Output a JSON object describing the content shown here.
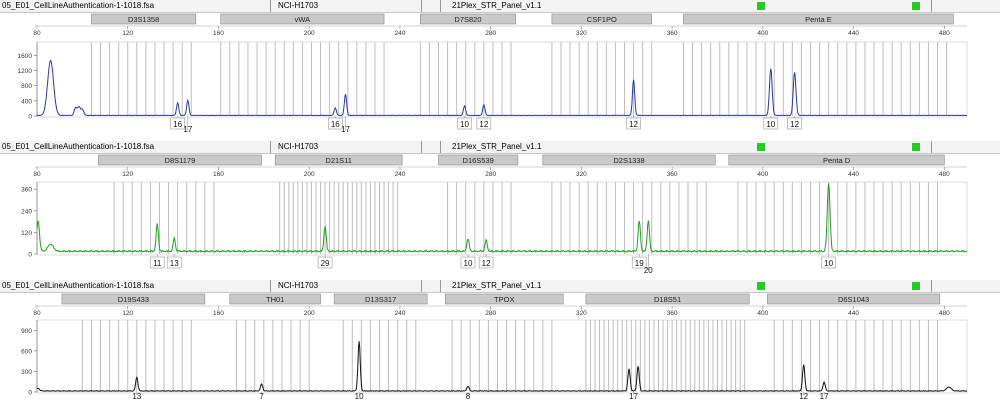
{
  "panels": [
    {
      "header": {
        "file": "05_E01_CellLineAuthentication-1-1018.fsa",
        "sample": "NCI-H1703",
        "panel": "21Plex_STR_Panel_v1.1"
      },
      "color": "#2b35b8",
      "chart_data": {
        "type": "line",
        "x_ticks": [
          80,
          120,
          160,
          200,
          240,
          280,
          320,
          360,
          400,
          440,
          480
        ],
        "y_ticks": [
          0,
          400,
          800,
          1200,
          1600
        ],
        "ylim": [
          0,
          1950
        ],
        "loci": [
          {
            "name": "D3S1358",
            "start": 104,
            "end": 150
          },
          {
            "name": "vWA",
            "start": 161,
            "end": 233
          },
          {
            "name": "D7S820",
            "start": 249,
            "end": 291
          },
          {
            "name": "CSF1PO",
            "start": 307,
            "end": 351
          },
          {
            "name": "Penta E",
            "start": 365,
            "end": 484
          }
        ],
        "peaks": [
          {
            "x": 86,
            "height": 1450,
            "width": 1.3
          },
          {
            "x": 97,
            "height": 200,
            "width": 0.6
          },
          {
            "x": 98.5,
            "height": 220,
            "width": 0.6
          },
          {
            "x": 100,
            "height": 160,
            "width": 0.6
          },
          {
            "x": 142,
            "height": 330,
            "width": 0.5
          },
          {
            "x": 146.5,
            "height": 400,
            "width": 0.5
          },
          {
            "x": 211.5,
            "height": 200,
            "width": 0.5
          },
          {
            "x": 216,
            "height": 560,
            "width": 0.5
          },
          {
            "x": 268.5,
            "height": 250,
            "width": 0.5
          },
          {
            "x": 277,
            "height": 280,
            "width": 0.5
          },
          {
            "x": 343,
            "height": 940,
            "width": 0.5
          },
          {
            "x": 403.5,
            "height": 1230,
            "width": 0.6
          },
          {
            "x": 414,
            "height": 1130,
            "width": 0.6
          }
        ],
        "alleles": [
          {
            "x": 142,
            "label": "16",
            "row": 0
          },
          {
            "x": 146.5,
            "label": "17",
            "row": 1
          },
          {
            "x": 211.5,
            "label": "16",
            "row": 0
          },
          {
            "x": 216,
            "label": "17",
            "row": 1
          },
          {
            "x": 268.5,
            "label": "10",
            "row": 0
          },
          {
            "x": 277,
            "label": "12",
            "row": 0
          },
          {
            "x": 343,
            "label": "12",
            "row": 0
          },
          {
            "x": 403.5,
            "label": "10",
            "row": 0
          },
          {
            "x": 414,
            "label": "12",
            "row": 0
          }
        ],
        "bins": [
          104,
          108,
          112,
          116,
          120,
          124,
          128,
          132,
          136,
          140,
          144,
          148,
          161,
          165,
          169,
          173,
          177,
          181,
          185,
          189,
          193,
          197,
          201,
          205,
          209,
          213,
          217,
          221,
          225,
          229,
          233,
          249,
          253,
          257,
          261,
          265,
          269,
          273,
          277,
          281,
          285,
          289,
          307,
          311,
          315,
          319,
          323,
          327,
          331,
          335,
          339,
          343,
          347,
          351,
          365,
          369,
          373,
          377,
          381,
          385,
          389,
          393,
          397,
          401,
          405,
          409,
          413,
          417,
          421,
          425,
          429,
          433,
          437,
          441,
          445,
          449,
          453,
          457,
          461,
          465,
          469,
          473,
          477,
          481
        ]
      }
    },
    {
      "header": {
        "file": "05_E01_CellLineAuthentication-1-1018.fsa",
        "sample": "NCI-H1703",
        "panel": "21Plex_STR_Panel_v1.1"
      },
      "color": "#1fa01f",
      "chart_data": {
        "type": "line",
        "x_ticks": [
          80,
          120,
          160,
          200,
          240,
          280,
          320,
          360,
          400,
          440,
          480
        ],
        "y_ticks": [
          0,
          120,
          240,
          360
        ],
        "ylim": [
          0,
          400
        ],
        "loci": [
          {
            "name": "D8S1179",
            "start": 107,
            "end": 179
          },
          {
            "name": "D21S11",
            "start": 185,
            "end": 241
          },
          {
            "name": "D16S539",
            "start": 257,
            "end": 292
          },
          {
            "name": "D2S1338",
            "start": 303,
            "end": 379
          },
          {
            "name": "Penta D",
            "start": 385,
            "end": 480
          }
        ],
        "peaks": [
          {
            "x": 80.5,
            "height": 170,
            "width": 0.6
          },
          {
            "x": 86,
            "height": 40,
            "width": 1.2
          },
          {
            "x": 133,
            "height": 150,
            "width": 0.5
          },
          {
            "x": 140.5,
            "height": 70,
            "width": 0.5
          },
          {
            "x": 207,
            "height": 140,
            "width": 0.5
          },
          {
            "x": 270,
            "height": 70,
            "width": 0.5
          },
          {
            "x": 278,
            "height": 60,
            "width": 0.5
          },
          {
            "x": 345.5,
            "height": 170,
            "width": 0.5
          },
          {
            "x": 349.5,
            "height": 170,
            "width": 0.5
          },
          {
            "x": 429,
            "height": 380,
            "width": 0.6
          }
        ],
        "alleles": [
          {
            "x": 133,
            "label": "11",
            "row": 0
          },
          {
            "x": 140.5,
            "label": "13",
            "row": 0
          },
          {
            "x": 207,
            "label": "29",
            "row": 0
          },
          {
            "x": 270,
            "label": "10",
            "row": 0
          },
          {
            "x": 278,
            "label": "12",
            "row": 0
          },
          {
            "x": 345.5,
            "label": "19",
            "row": 0
          },
          {
            "x": 349.5,
            "label": "20",
            "row": 1
          },
          {
            "x": 429,
            "label": "10",
            "row": 0
          }
        ],
        "bins": [
          114,
          118,
          122,
          126,
          130,
          134,
          138,
          142,
          146,
          150,
          154,
          158,
          187,
          189,
          191,
          193,
          195,
          197,
          199,
          201,
          203,
          205,
          207,
          209,
          211,
          213,
          215,
          217,
          219,
          221,
          223,
          225,
          227,
          229,
          231,
          233,
          235,
          237,
          239,
          261,
          265,
          269,
          273,
          277,
          281,
          285,
          289,
          307,
          311,
          315,
          319,
          323,
          327,
          331,
          335,
          339,
          343,
          347,
          351,
          355,
          359,
          363,
          367,
          371,
          375,
          389,
          393,
          397,
          401,
          405,
          409,
          413,
          417,
          421,
          425,
          429,
          433,
          437,
          441,
          445,
          449,
          453,
          457,
          461,
          465,
          469,
          473,
          477
        ]
      }
    },
    {
      "header": {
        "file": "05_E01_CellLineAuthentication-1-1018.fsa",
        "sample": "NCI-H1703",
        "panel": "21Plex_STR_Panel_v1.1"
      },
      "color": "#111111",
      "chart_data": {
        "type": "line",
        "x_ticks": [
          80,
          120,
          160,
          200,
          240,
          280,
          320,
          360,
          400,
          440,
          480
        ],
        "y_ticks": [
          0,
          300,
          600,
          900
        ],
        "ylim": [
          0,
          1050
        ],
        "loci": [
          {
            "name": "D19S433",
            "start": 91,
            "end": 154
          },
          {
            "name": "TH01",
            "start": 165,
            "end": 205
          },
          {
            "name": "D13S317",
            "start": 211,
            "end": 252
          },
          {
            "name": "TPOX",
            "start": 260,
            "end": 312
          },
          {
            "name": "D18S51",
            "start": 322,
            "end": 394
          },
          {
            "name": "D6S1043",
            "start": 402,
            "end": 478
          }
        ],
        "peaks": [
          {
            "x": 80.5,
            "height": 40,
            "width": 0.6
          },
          {
            "x": 124,
            "height": 200,
            "width": 0.5
          },
          {
            "x": 179,
            "height": 100,
            "width": 0.5
          },
          {
            "x": 222,
            "height": 720,
            "width": 0.5
          },
          {
            "x": 270,
            "height": 70,
            "width": 0.5
          },
          {
            "x": 341,
            "height": 320,
            "width": 0.5
          },
          {
            "x": 345,
            "height": 360,
            "width": 0.5
          },
          {
            "x": 418,
            "height": 380,
            "width": 0.5
          },
          {
            "x": 427,
            "height": 130,
            "width": 0.5
          },
          {
            "x": 482,
            "height": 60,
            "width": 1.0
          }
        ],
        "alleles": [
          {
            "x": 124,
            "label": "13",
            "row": 0
          },
          {
            "x": 179,
            "label": "7",
            "row": 0
          },
          {
            "x": 222,
            "label": "10",
            "row": 0
          },
          {
            "x": 270,
            "label": "8",
            "row": 0
          },
          {
            "x": 343,
            "label": "17",
            "row": 0
          },
          {
            "x": 418,
            "label": "12",
            "row": 0
          },
          {
            "x": 427,
            "label": "17",
            "row": 0
          }
        ],
        "bins": [
          100,
          104,
          108,
          112,
          116,
          120,
          124,
          128,
          132,
          136,
          140,
          144,
          148,
          168,
          172,
          176,
          180,
          184,
          188,
          192,
          196,
          200,
          215,
          219,
          223,
          227,
          231,
          235,
          239,
          243,
          247,
          263,
          267,
          271,
          275,
          279,
          283,
          287,
          291,
          295,
          299,
          303,
          307,
          322,
          324,
          326,
          328,
          330,
          332,
          334,
          336,
          338,
          340,
          342,
          344,
          346,
          348,
          350,
          352,
          354,
          356,
          358,
          360,
          362,
          364,
          366,
          368,
          370,
          372,
          374,
          376,
          378,
          380,
          382,
          384,
          386,
          388,
          390,
          392,
          405,
          409,
          413,
          417,
          421,
          425,
          429,
          433,
          437,
          441,
          445,
          449,
          453,
          457,
          461,
          465,
          469,
          473,
          477
        ]
      }
    }
  ]
}
